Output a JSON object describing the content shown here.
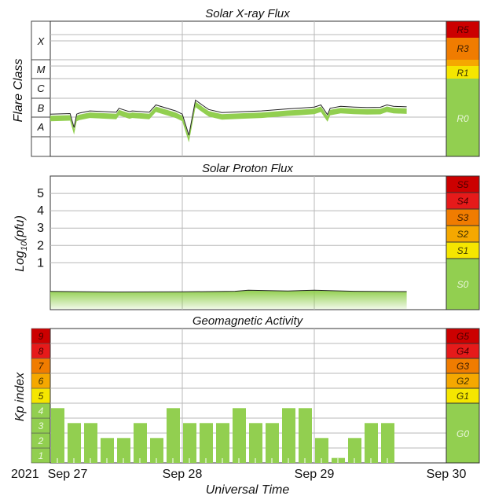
{
  "chart_data": [
    {
      "type": "line",
      "title": "Solar X-ray Flux",
      "ylabel": "Flare Class",
      "y_scale": "log",
      "flare_classes": [
        "X",
        "M",
        "C",
        "B",
        "A"
      ],
      "scale_labels": [
        "R5",
        "R3",
        "R1",
        "R0"
      ],
      "xlim": [
        "2021-09-27",
        "2021-09-30"
      ],
      "series": [
        {
          "values_note": "",
          "x_days": [
            0.0,
            0.15,
            0.18,
            0.2,
            0.22,
            0.3,
            0.5,
            0.52,
            0.6,
            0.62,
            0.75,
            0.8,
            0.95,
            1.0,
            1.05,
            1.08,
            1.1,
            1.15,
            1.2,
            1.3,
            1.45,
            1.6,
            1.8,
            1.9,
            2.0,
            2.05,
            2.1,
            2.12,
            2.2,
            2.3,
            2.4,
            2.5,
            2.55,
            2.6,
            2.7
          ],
          "values": [
            1.5e-07,
            1.6e-07,
            3e-08,
            1.5e-07,
            1.7e-07,
            2.2e-07,
            1.9e-07,
            3e-07,
            2e-07,
            2.2e-07,
            1.9e-07,
            4.5e-07,
            2.2e-07,
            1.5e-07,
            1.2e-08,
            1.5e-07,
            8e-07,
            4.5e-07,
            2.6e-07,
            1.8e-07,
            2e-07,
            2.2e-07,
            2.8e-07,
            3.1e-07,
            3.5e-07,
            4.5e-07,
            1.4e-07,
            3e-07,
            3.8e-07,
            3.5e-07,
            3.3e-07,
            3.4e-07,
            4.5e-07,
            3.8e-07,
            3.6e-07
          ]
        }
      ]
    },
    {
      "type": "line",
      "title": "Solar Proton Flux",
      "ylabel": "Log10(pfu)",
      "ylabel_main": "Log",
      "ylabel_sub": "10",
      "ylabel_tail": "(pfu)",
      "yticks": [
        "5",
        "4",
        "3",
        "2",
        "1"
      ],
      "scale_labels": [
        "S5",
        "S4",
        "S3",
        "S2",
        "S1",
        "S0"
      ],
      "ylim": [
        -1.7,
        6
      ],
      "series": [
        {
          "x_days": [
            0.0,
            0.5,
            1.0,
            1.4,
            1.5,
            1.8,
            2.0,
            2.3,
            2.7
          ],
          "values": [
            -0.65,
            -0.68,
            -0.67,
            -0.64,
            -0.58,
            -0.62,
            -0.58,
            -0.64,
            -0.66
          ]
        }
      ]
    },
    {
      "type": "bar",
      "title": "Geomagnetic Activity",
      "ylabel": "Kp index",
      "yticks": [
        "9",
        "8",
        "7",
        "6",
        "5",
        "4",
        "3",
        "2",
        "1"
      ],
      "scale_labels": [
        "G5",
        "G4",
        "G3",
        "G2",
        "G1",
        "G0"
      ],
      "ylim": [
        0,
        9
      ],
      "x_days": [
        0.0,
        0.125,
        0.25,
        0.375,
        0.5,
        0.625,
        0.75,
        0.875,
        1.0,
        1.125,
        1.25,
        1.375,
        1.5,
        1.625,
        1.75,
        1.875,
        2.0,
        2.125,
        2.25,
        2.375,
        2.5,
        2.625
      ],
      "values": [
        3.67,
        2.67,
        2.67,
        1.67,
        1.67,
        2.67,
        1.67,
        3.67,
        2.67,
        2.67,
        2.67,
        3.67,
        2.67,
        2.67,
        3.67,
        3.67,
        1.67,
        0.33,
        1.67,
        2.67,
        2.67,
        0.0
      ]
    }
  ],
  "x_axis": {
    "year_label": "2021",
    "tick_labels": [
      "Sep 27",
      "Sep 28",
      "Sep 29",
      "Sep 30"
    ],
    "xlabel": "Universal Time"
  },
  "colors": {
    "green": "#92cf50",
    "dark_green": "#6aa832",
    "red_dark": "#cc0000",
    "red": "#e61a1a",
    "orange": "#f07c00",
    "amber": "#f5a800",
    "yellow": "#f5e600",
    "grid": "#b8b8b8",
    "axis": "#333333"
  }
}
